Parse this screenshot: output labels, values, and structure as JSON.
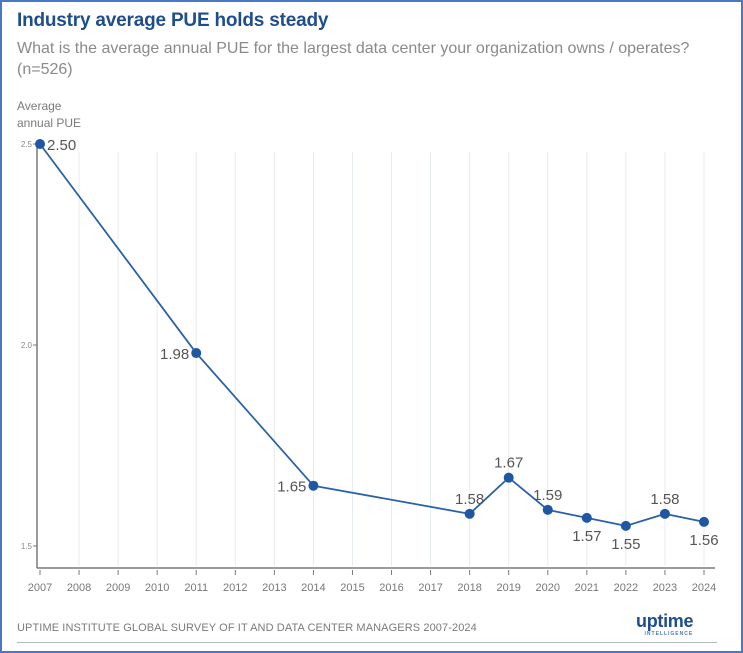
{
  "header": {
    "title": "Industry average PUE holds steady",
    "subtitle": "What is the average annual PUE for the largest data center your organization owns / operates? (n=526)"
  },
  "footer": {
    "source": "UPTIME INSTITUTE GLOBAL SURVEY OF IT AND DATA CENTER MANAGERS 2007-2024",
    "logo_main": "uptime",
    "logo_sub": "INTELLIGENCE"
  },
  "colors": {
    "line": "#2a62a8",
    "marker": "#1f57a3",
    "label": "#555555",
    "axis": "#7a7a7a",
    "grid": "#e6ecef"
  },
  "chart_data": {
    "type": "line",
    "title": "Industry average PUE holds steady",
    "subtitle": "What is the average annual PUE for the largest data center your organization owns / operates? (n=526)",
    "xlabel": "",
    "ylabel": "Average annual PUE",
    "ylim": [
      1.44,
      2.5
    ],
    "yticks": [
      1.5,
      2.0,
      2.5
    ],
    "ytick_labels": [
      "1.5",
      "2.0",
      "2.5"
    ],
    "xticks": [
      2007,
      2008,
      2009,
      2010,
      2011,
      2012,
      2013,
      2014,
      2015,
      2016,
      2017,
      2018,
      2019,
      2020,
      2021,
      2022,
      2023,
      2024
    ],
    "xtick_labels": [
      "2007",
      "2008",
      "2009",
      "2010",
      "2011",
      "2012",
      "2013",
      "2014",
      "2015",
      "2016",
      "2017",
      "2018",
      "2019",
      "2020",
      "2021",
      "2022",
      "2023",
      "2024"
    ],
    "grid": "vertical",
    "legend": "none",
    "series": [
      {
        "name": "Average annual PUE",
        "x": [
          2007,
          2011,
          2014,
          2018,
          2019,
          2020,
          2021,
          2022,
          2023,
          2024
        ],
        "values": [
          2.5,
          1.98,
          1.65,
          1.58,
          1.67,
          1.59,
          1.57,
          1.55,
          1.58,
          1.56
        ],
        "labels": [
          "2.50",
          "1.98",
          "1.65",
          "1.58",
          "1.67",
          "1.59",
          "1.57",
          "1.55",
          "1.58",
          "1.56"
        ],
        "label_positions": [
          "right",
          "left",
          "left",
          "above",
          "above",
          "above",
          "below",
          "below",
          "above",
          "below"
        ]
      }
    ]
  }
}
